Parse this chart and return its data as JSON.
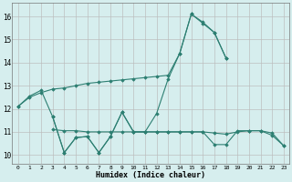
{
  "x": [
    0,
    1,
    2,
    3,
    4,
    5,
    6,
    7,
    8,
    9,
    10,
    11,
    12,
    13,
    14,
    15,
    16,
    17,
    18,
    19,
    20,
    21,
    22,
    23
  ],
  "line1_smooth": [
    12.1,
    12.5,
    12.7,
    12.85,
    12.9,
    13.0,
    13.1,
    13.15,
    13.2,
    13.25,
    13.3,
    13.35,
    13.4,
    13.45,
    14.4,
    16.1,
    15.7,
    15.3,
    14.2,
    null,
    null,
    null,
    null,
    null
  ],
  "line2_jagged": [
    12.1,
    12.55,
    12.8,
    11.65,
    10.1,
    10.75,
    10.8,
    10.1,
    10.8,
    11.85,
    11.0,
    11.0,
    11.8,
    13.3,
    14.4,
    16.1,
    15.75,
    15.3,
    14.2,
    null,
    null,
    null,
    null,
    null
  ],
  "line3_flat": [
    null,
    null,
    null,
    11.1,
    11.05,
    11.05,
    11.0,
    11.0,
    11.0,
    11.0,
    11.0,
    11.0,
    11.0,
    11.0,
    11.0,
    11.0,
    11.0,
    10.95,
    10.9,
    11.0,
    11.05,
    11.05,
    10.95,
    10.4
  ],
  "line4_wiggly": [
    null,
    null,
    null,
    11.65,
    10.1,
    10.75,
    10.8,
    10.1,
    10.8,
    11.85,
    11.0,
    11.0,
    11.0,
    11.0,
    11.0,
    11.0,
    11.0,
    10.45,
    10.45,
    11.05,
    11.05,
    11.05,
    10.85,
    10.4
  ],
  "color": "#2D7F72",
  "bg_color": "#D6EEEE",
  "grid_color": "#BBBBBB",
  "ylabel_vals": [
    10,
    11,
    12,
    13,
    14,
    15,
    16
  ],
  "ylim": [
    9.6,
    16.6
  ],
  "xlim": [
    -0.5,
    23.5
  ],
  "xlabel": "Humidex (Indice chaleur)"
}
